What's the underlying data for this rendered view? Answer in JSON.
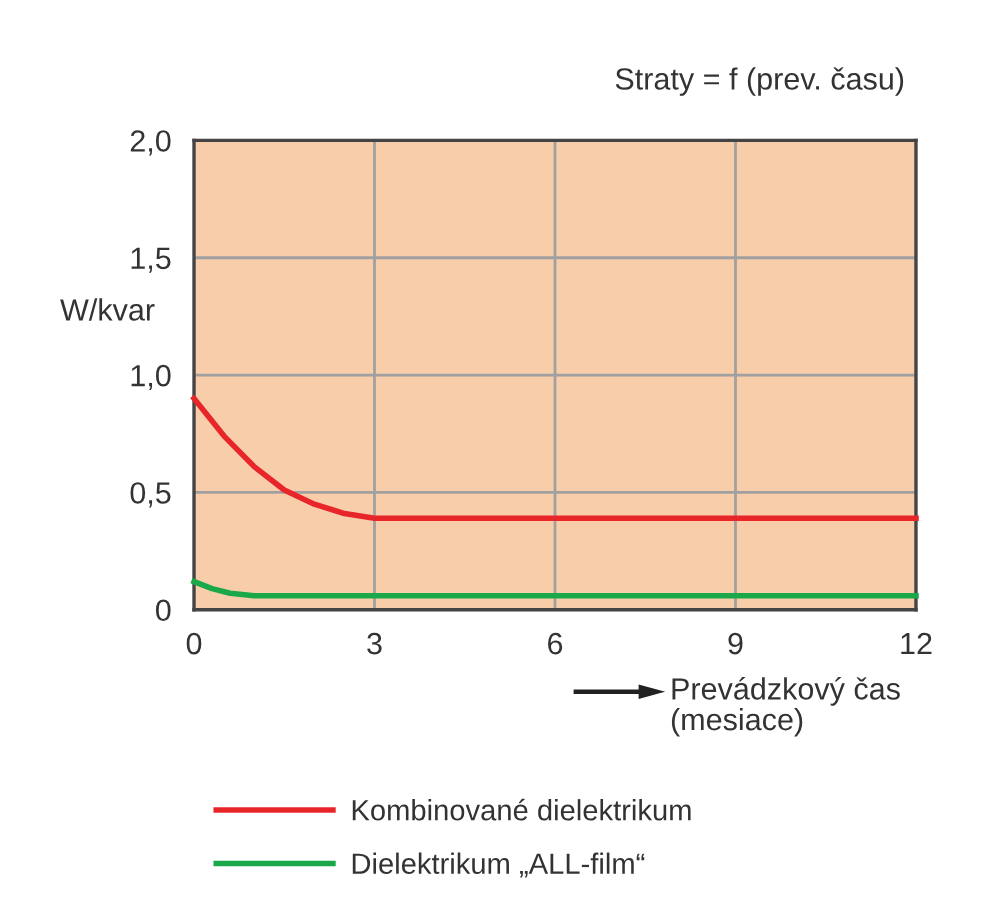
{
  "chart_data": {
    "type": "line",
    "annotations": [
      "Straty = f (prev. času)"
    ],
    "xlabel": "Prevádzkový čas\n(mesiace)",
    "ylabel": "W/kvar",
    "series": [
      {
        "name": "Kombinované dielektrikum",
        "color": "#e8262a",
        "x": [
          0,
          0.5,
          1,
          1.5,
          2,
          2.5,
          3,
          12
        ],
        "values": [
          0.9,
          0.74,
          0.61,
          0.51,
          0.45,
          0.41,
          0.39,
          0.39
        ]
      },
      {
        "name": "Dielektrikum „ALL-film“",
        "color": "#1aa84a",
        "x": [
          0,
          0.3,
          0.6,
          1,
          12
        ],
        "values": [
          0.12,
          0.09,
          0.07,
          0.06,
          0.06
        ]
      }
    ],
    "xlim": [
      0,
      12
    ],
    "xticks": [
      0,
      3,
      6,
      9,
      12
    ],
    "ylim": [
      0,
      2
    ],
    "yticks": [
      {
        "value": 0,
        "label": "0"
      },
      {
        "value": 0.5,
        "label": "0,5"
      },
      {
        "value": 1,
        "label": "1,0"
      },
      {
        "value": 1.5,
        "label": "1,5"
      },
      {
        "value": 2,
        "label": "2,0"
      }
    ],
    "grid": true,
    "legend": "bottom",
    "marker": "none",
    "line_style": "solid"
  }
}
